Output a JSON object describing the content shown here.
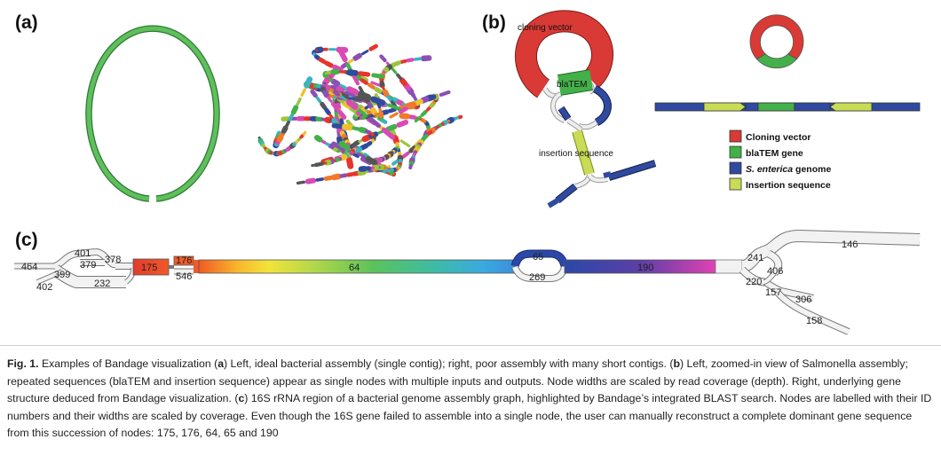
{
  "panels": {
    "a": "(a)",
    "b": "(b)",
    "c": "(c)"
  },
  "panel_b": {
    "graph_labels": {
      "cloning_vector": "cloning vector",
      "blatem": "blaTEM",
      "insertion_sequence": "insertion sequence"
    },
    "legend": [
      {
        "label": "Cloning vector",
        "color": "#d93a35"
      },
      {
        "label": "blaTEM gene",
        "color": "#43b04a"
      },
      {
        "label": "S. enterica genome",
        "color": "#2f4a9e",
        "italic_part": "S. enterica"
      },
      {
        "label": "Insertion sequence",
        "color": "#c9dc55"
      }
    ],
    "colors": {
      "cloning_vector": "#d93a35",
      "blatem": "#43b04a",
      "genome": "#2f4a9e",
      "insertion": "#c9dc55"
    }
  },
  "panel_c": {
    "node_ids": [
      "464",
      "401",
      "399",
      "379",
      "378",
      "402",
      "232",
      "175",
      "176",
      "546",
      "64",
      "65",
      "269",
      "190",
      "241",
      "406",
      "220",
      "157",
      "306",
      "158",
      "146"
    ]
  },
  "caption": {
    "fig_label": "Fig. 1.",
    "text_1": " Examples of Bandage visualization (",
    "a1": "a",
    "text_2": ") Left, ideal bacterial assembly (single contig); right, poor assembly with many short contigs. (",
    "b1": "b",
    "text_3": ") Left, zoomed-in view of Salmonella assembly; repeated sequences (blaTEM and insertion sequence) appear as single nodes with multiple inputs and outputs. Node widths are scaled by read coverage (depth). Right, underlying gene structure deduced from Bandage visualization. (",
    "c1": "c",
    "text_4": ") 16S rRNA region of a bacterial genome assembly graph, highlighted by Bandage’s integrated BLAST search. Nodes are labelled with their ID numbers and their widths are scaled by coverage. Even though the 16S gene failed to assemble into a single node, the user can manually reconstruct a complete dominant gene sequence from this succession of nodes: 175, 176, 64, 65 and 190"
  }
}
